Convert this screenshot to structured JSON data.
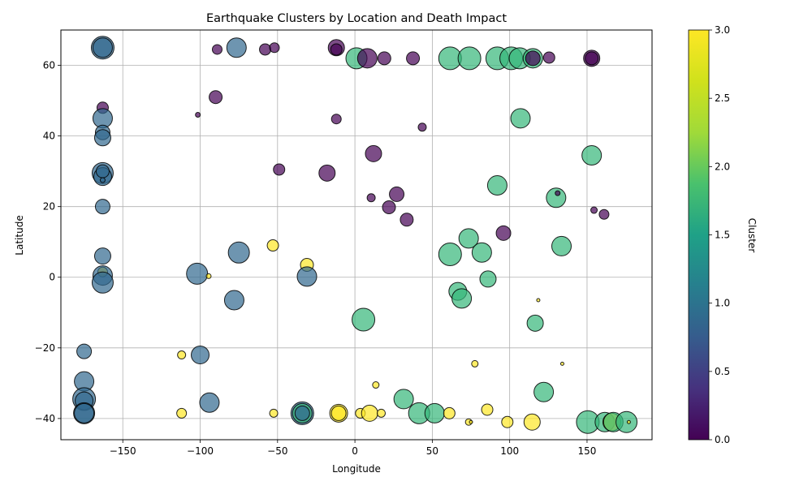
{
  "chart_data": {
    "type": "scatter",
    "title": "Earthquake Clusters by Location and Death Impact",
    "xlabel": "Longitude",
    "ylabel": "Latitude",
    "xlim": [
      -190,
      192
    ],
    "ylim": [
      -46,
      70
    ],
    "xticks": [
      -150,
      -100,
      -50,
      0,
      50,
      100,
      150
    ],
    "xtick_labels": [
      "−150",
      "−100",
      "−50",
      "0",
      "50",
      "100",
      "150"
    ],
    "yticks": [
      -40,
      -20,
      0,
      20,
      40,
      60
    ],
    "ytick_labels": [
      "−40",
      "−20",
      "0",
      "20",
      "40",
      "60"
    ],
    "grid": true,
    "colorbar": {
      "label": "Cluster",
      "colormap": "viridis",
      "range": [
        0,
        3
      ],
      "ticks": [
        0,
        0.5,
        1,
        1.5,
        2,
        2.5,
        3
      ],
      "tick_labels": [
        "0.0",
        "0.5",
        "1.0",
        "1.5",
        "2.0",
        "2.5",
        "3.0"
      ]
    },
    "marker_alpha": 0.7,
    "colors": {
      "cluster_0": "#440154",
      "cluster_1": "#31688e",
      "cluster_2": "#35b779",
      "cluster_3": "#fde725"
    },
    "points": [
      {
        "lon": -163,
        "lat": 65,
        "cluster": 1,
        "size": 14
      },
      {
        "lon": -163,
        "lat": 65,
        "cluster": 1,
        "size": 12
      },
      {
        "lon": -163,
        "lat": 48,
        "cluster": 0,
        "size": 7
      },
      {
        "lon": -163,
        "lat": 45,
        "cluster": 1,
        "size": 12
      },
      {
        "lon": -163,
        "lat": 41,
        "cluster": 1,
        "size": 9
      },
      {
        "lon": -163,
        "lat": 39.5,
        "cluster": 1,
        "size": 10
      },
      {
        "lon": -163,
        "lat": 29.5,
        "cluster": 1,
        "size": 13
      },
      {
        "lon": -163,
        "lat": 28.5,
        "cluster": 1,
        "size": 11
      },
      {
        "lon": -163,
        "lat": 30,
        "cluster": 1,
        "size": 8
      },
      {
        "lon": -163,
        "lat": 27.5,
        "cluster": 1,
        "size": 3
      },
      {
        "lon": -163,
        "lat": 20,
        "cluster": 1,
        "size": 9
      },
      {
        "lon": -163,
        "lat": 6,
        "cluster": 1,
        "size": 10
      },
      {
        "lon": -163,
        "lat": 1.5,
        "cluster": 3,
        "size": 6
      },
      {
        "lon": -163,
        "lat": 0.5,
        "cluster": 1,
        "size": 12
      },
      {
        "lon": -163,
        "lat": -1.5,
        "cluster": 1,
        "size": 13
      },
      {
        "lon": -175,
        "lat": -21,
        "cluster": 1,
        "size": 9
      },
      {
        "lon": -175,
        "lat": -29.5,
        "cluster": 1,
        "size": 12
      },
      {
        "lon": -175,
        "lat": -34.5,
        "cluster": 1,
        "size": 14
      },
      {
        "lon": -175,
        "lat": -35,
        "cluster": 1,
        "size": 11
      },
      {
        "lon": -175,
        "lat": -38.5,
        "cluster": 1,
        "size": 13
      },
      {
        "lon": -175,
        "lat": -38.5,
        "cluster": 1,
        "size": 12
      },
      {
        "lon": -101.5,
        "lat": 46,
        "cluster": 0,
        "size": 3
      },
      {
        "lon": -89,
        "lat": 64.5,
        "cluster": 0,
        "size": 6
      },
      {
        "lon": -90,
        "lat": 51,
        "cluster": 0,
        "size": 8
      },
      {
        "lon": -76.5,
        "lat": 65,
        "cluster": 1,
        "size": 12
      },
      {
        "lon": -58,
        "lat": 64.5,
        "cluster": 0,
        "size": 7
      },
      {
        "lon": -52,
        "lat": 65,
        "cluster": 0,
        "size": 6
      },
      {
        "lon": -49,
        "lat": 30.5,
        "cluster": 0,
        "size": 7
      },
      {
        "lon": -18,
        "lat": 29.5,
        "cluster": 0,
        "size": 10
      },
      {
        "lon": -12,
        "lat": 65,
        "cluster": 0,
        "size": 10
      },
      {
        "lon": -12,
        "lat": 64.5,
        "cluster": 0,
        "size": 7
      },
      {
        "lon": -12,
        "lat": 44.8,
        "cluster": 0,
        "size": 6
      },
      {
        "lon": -102,
        "lat": 1,
        "cluster": 1,
        "size": 13
      },
      {
        "lon": -94.5,
        "lat": 0.3,
        "cluster": 3,
        "size": 3
      },
      {
        "lon": -75,
        "lat": 7,
        "cluster": 1,
        "size": 13
      },
      {
        "lon": -53,
        "lat": 9,
        "cluster": 3,
        "size": 7
      },
      {
        "lon": -31,
        "lat": 3.5,
        "cluster": 3,
        "size": 8
      },
      {
        "lon": -31,
        "lat": 0.2,
        "cluster": 1,
        "size": 12
      },
      {
        "lon": -78,
        "lat": -6.5,
        "cluster": 1,
        "size": 12
      },
      {
        "lon": -112,
        "lat": -22,
        "cluster": 3,
        "size": 5
      },
      {
        "lon": -100,
        "lat": -22,
        "cluster": 1,
        "size": 11
      },
      {
        "lon": -94,
        "lat": -35.5,
        "cluster": 1,
        "size": 12
      },
      {
        "lon": -112,
        "lat": -38.5,
        "cluster": 3,
        "size": 6
      },
      {
        "lon": -52.5,
        "lat": -38.5,
        "cluster": 3,
        "size": 5
      },
      {
        "lon": -34,
        "lat": -38.5,
        "cluster": 1,
        "size": 14
      },
      {
        "lon": -34,
        "lat": -38.5,
        "cluster": 2,
        "size": 12
      },
      {
        "lon": -34,
        "lat": -38.5,
        "cluster": 1,
        "size": 9
      },
      {
        "lon": -10.5,
        "lat": -38.5,
        "cluster": 3,
        "size": 11
      },
      {
        "lon": -10.5,
        "lat": -38.5,
        "cluster": 3,
        "size": 9
      },
      {
        "lon": 3.5,
        "lat": -38.5,
        "cluster": 3,
        "size": 6
      },
      {
        "lon": 9.5,
        "lat": -38.5,
        "cluster": 3,
        "size": 10
      },
      {
        "lon": 17,
        "lat": -38.5,
        "cluster": 3,
        "size": 5
      },
      {
        "lon": 13.5,
        "lat": -30.5,
        "cluster": 3,
        "size": 4
      },
      {
        "lon": 1,
        "lat": 62,
        "cluster": 2,
        "size": 13
      },
      {
        "lon": 8,
        "lat": 62,
        "cluster": 0,
        "size": 12
      },
      {
        "lon": 19,
        "lat": 62,
        "cluster": 0,
        "size": 8
      },
      {
        "lon": 37.5,
        "lat": 62,
        "cluster": 0,
        "size": 8
      },
      {
        "lon": 43.5,
        "lat": 42.5,
        "cluster": 0,
        "size": 5
      },
      {
        "lon": 12,
        "lat": 35,
        "cluster": 0,
        "size": 10
      },
      {
        "lon": 10.5,
        "lat": 22.5,
        "cluster": 0,
        "size": 5
      },
      {
        "lon": 27,
        "lat": 23.5,
        "cluster": 0,
        "size": 9
      },
      {
        "lon": 22,
        "lat": 19.8,
        "cluster": 0,
        "size": 8
      },
      {
        "lon": 33.5,
        "lat": 16.3,
        "cluster": 0,
        "size": 8
      },
      {
        "lon": 5.5,
        "lat": -12,
        "cluster": 2,
        "size": 14
      },
      {
        "lon": 31.5,
        "lat": -34.5,
        "cluster": 2,
        "size": 12
      },
      {
        "lon": 41.5,
        "lat": -38.5,
        "cluster": 2,
        "size": 13
      },
      {
        "lon": 51.5,
        "lat": -38.5,
        "cluster": 2,
        "size": 12
      },
      {
        "lon": 61,
        "lat": -38.5,
        "cluster": 3,
        "size": 7
      },
      {
        "lon": 61.5,
        "lat": 62,
        "cluster": 2,
        "size": 14
      },
      {
        "lon": 74,
        "lat": 62,
        "cluster": 2,
        "size": 14
      },
      {
        "lon": 92,
        "lat": 62,
        "cluster": 2,
        "size": 14
      },
      {
        "lon": 101,
        "lat": 62,
        "cluster": 2,
        "size": 14
      },
      {
        "lon": 106.5,
        "lat": 62,
        "cluster": 2,
        "size": 13
      },
      {
        "lon": 115,
        "lat": 62,
        "cluster": 2,
        "size": 12
      },
      {
        "lon": 115,
        "lat": 62,
        "cluster": 0,
        "size": 9
      },
      {
        "lon": 125.5,
        "lat": 62.2,
        "cluster": 0,
        "size": 7
      },
      {
        "lon": 153,
        "lat": 62,
        "cluster": 0,
        "size": 10
      },
      {
        "lon": 153,
        "lat": 62,
        "cluster": 0,
        "size": 8
      },
      {
        "lon": 107,
        "lat": 45,
        "cluster": 2,
        "size": 12
      },
      {
        "lon": 153,
        "lat": 34.5,
        "cluster": 2,
        "size": 12
      },
      {
        "lon": 92,
        "lat": 26,
        "cluster": 2,
        "size": 12
      },
      {
        "lon": 130,
        "lat": 22.5,
        "cluster": 2,
        "size": 12
      },
      {
        "lon": 131,
        "lat": 23.8,
        "cluster": 0,
        "size": 3
      },
      {
        "lon": 154.5,
        "lat": 19,
        "cluster": 0,
        "size": 4
      },
      {
        "lon": 161,
        "lat": 17.8,
        "cluster": 0,
        "size": 6
      },
      {
        "lon": 96,
        "lat": 12.5,
        "cluster": 0,
        "size": 9
      },
      {
        "lon": 73.5,
        "lat": 11,
        "cluster": 2,
        "size": 12
      },
      {
        "lon": 61.5,
        "lat": 6.5,
        "cluster": 2,
        "size": 14
      },
      {
        "lon": 82,
        "lat": 7,
        "cluster": 2,
        "size": 12
      },
      {
        "lon": 133.5,
        "lat": 8.8,
        "cluster": 2,
        "size": 12
      },
      {
        "lon": 86,
        "lat": -0.5,
        "cluster": 2,
        "size": 10
      },
      {
        "lon": 66.5,
        "lat": -4,
        "cluster": 2,
        "size": 11
      },
      {
        "lon": 69,
        "lat": -6,
        "cluster": 2,
        "size": 12
      },
      {
        "lon": 118.5,
        "lat": -6.5,
        "cluster": 3,
        "size": 2
      },
      {
        "lon": 116.5,
        "lat": -13,
        "cluster": 2,
        "size": 10
      },
      {
        "lon": 122,
        "lat": -32.5,
        "cluster": 2,
        "size": 12
      },
      {
        "lon": 77.5,
        "lat": -24.5,
        "cluster": 3,
        "size": 4
      },
      {
        "lon": 134,
        "lat": -24.5,
        "cluster": 3,
        "size": 2
      },
      {
        "lon": 85.5,
        "lat": -37.5,
        "cluster": 3,
        "size": 7
      },
      {
        "lon": 73.5,
        "lat": -41,
        "cluster": 3,
        "size": 4
      },
      {
        "lon": 98.5,
        "lat": -41,
        "cluster": 3,
        "size": 7
      },
      {
        "lon": 114.5,
        "lat": -41,
        "cluster": 3,
        "size": 10
      },
      {
        "lon": 75,
        "lat": -41,
        "cluster": 3,
        "size": 2
      },
      {
        "lon": 150.5,
        "lat": -41,
        "cluster": 2,
        "size": 14
      },
      {
        "lon": 161.5,
        "lat": -41,
        "cluster": 2,
        "size": 12
      },
      {
        "lon": 166,
        "lat": -41,
        "cluster": 3,
        "size": 11
      },
      {
        "lon": 167,
        "lat": -41,
        "cluster": 2,
        "size": 12
      },
      {
        "lon": 175.5,
        "lat": -41,
        "cluster": 2,
        "size": 13
      },
      {
        "lon": 177,
        "lat": -41,
        "cluster": 3,
        "size": 2
      }
    ]
  }
}
